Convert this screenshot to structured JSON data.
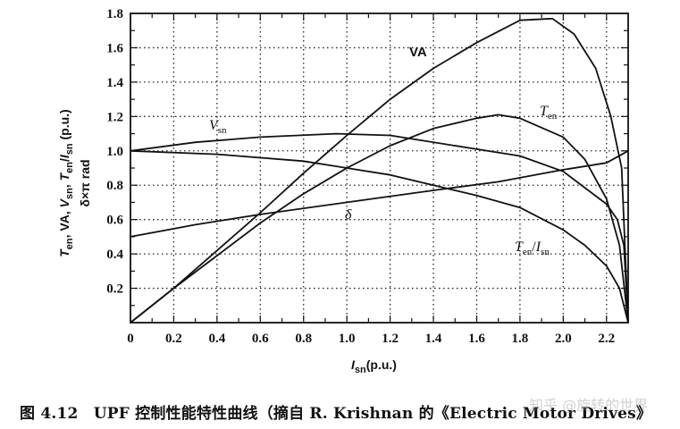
{
  "chart_data": {
    "type": "line",
    "title": "",
    "xlabel": "I_sn (p.u.)",
    "ylabel": "T_en, VA, V_sn, T_en/I_sn (p.u.) δ×π rad",
    "xlim": [
      0,
      2.3
    ],
    "ylim": [
      0,
      1.8
    ],
    "grid": true,
    "xticks": [
      "0",
      "0.2",
      "0.4",
      "0.6",
      "0.8",
      "1.0",
      "1.2",
      "1.4",
      "1.6",
      "1.8",
      "2.0",
      "2.2"
    ],
    "yticks": [
      "0.2",
      "0.4",
      "0.6",
      "0.8",
      "1.0",
      "1.2",
      "1.4",
      "1.6",
      "1.8"
    ],
    "series": [
      {
        "name": "VA",
        "x": [
          0,
          0.2,
          0.4,
          0.6,
          0.8,
          1.0,
          1.2,
          1.4,
          1.6,
          1.8,
          1.95,
          2.05,
          2.15,
          2.22,
          2.27,
          2.3
        ],
        "y": [
          0,
          0.2,
          0.42,
          0.64,
          0.87,
          1.09,
          1.3,
          1.48,
          1.63,
          1.76,
          1.77,
          1.68,
          1.48,
          1.2,
          0.9,
          0
        ]
      },
      {
        "name": "Vsn",
        "x": [
          0,
          0.3,
          0.6,
          0.95,
          1.2,
          1.6,
          1.8,
          2.0,
          2.2,
          2.25,
          2.28,
          2.3
        ],
        "y": [
          1.0,
          1.05,
          1.08,
          1.1,
          1.09,
          1.01,
          0.97,
          0.88,
          0.69,
          0.6,
          0.45,
          0
        ]
      },
      {
        "name": "Ten",
        "x": [
          0,
          0.2,
          0.4,
          0.6,
          0.8,
          1.0,
          1.2,
          1.4,
          1.6,
          1.7,
          1.8,
          2.0,
          2.1,
          2.2,
          2.26,
          2.3
        ],
        "y": [
          0,
          0.2,
          0.39,
          0.58,
          0.75,
          0.9,
          1.03,
          1.13,
          1.19,
          1.21,
          1.19,
          1.08,
          0.95,
          0.72,
          0.45,
          0
        ]
      },
      {
        "name": "Ten/Isn",
        "x": [
          0,
          0.4,
          0.8,
          1.2,
          1.6,
          1.8,
          2.0,
          2.1,
          2.2,
          2.26,
          2.3
        ],
        "y": [
          1.0,
          0.98,
          0.94,
          0.86,
          0.74,
          0.67,
          0.54,
          0.45,
          0.33,
          0.2,
          0
        ]
      },
      {
        "name": "δ",
        "x": [
          0,
          0.3,
          0.6,
          1.0,
          1.4,
          1.7,
          2.0,
          2.2,
          2.3
        ],
        "y": [
          0.5,
          0.57,
          0.63,
          0.7,
          0.77,
          0.82,
          0.89,
          0.93,
          1.0
        ]
      }
    ],
    "annotations": {
      "va": "VA",
      "vsn_main": "V",
      "vsn_sub": "sn",
      "ten_main": "T",
      "ten_sub": "en",
      "delta": "δ",
      "ratio_t": "T",
      "ratio_t_sub": "en",
      "ratio_slash": "/",
      "ratio_i": "I",
      "ratio_i_sub": "sn"
    }
  },
  "axis_text": {
    "y_line1_a": "T",
    "y_line1_a_sub": "en",
    "y_line1_b": ", VA, ",
    "y_line1_c": "V",
    "y_line1_c_sub": "sn",
    "y_line1_d": ", ",
    "y_line1_e": "T",
    "y_line1_e_sub": "en",
    "y_line1_f": "/",
    "y_line1_g": "I",
    "y_line1_g_sub": "sn",
    "y_line1_h": " (p.u.)",
    "y_line2": "δ×π rad",
    "x_main": "I",
    "x_sub": "sn",
    "x_unit": "(p.u.)"
  },
  "caption": "图 4.12　UPF 控制性能特性曲线（摘自 R. Krishnan 的《Electric Motor Drives》",
  "watermark": "知乎 @旋转的世界"
}
